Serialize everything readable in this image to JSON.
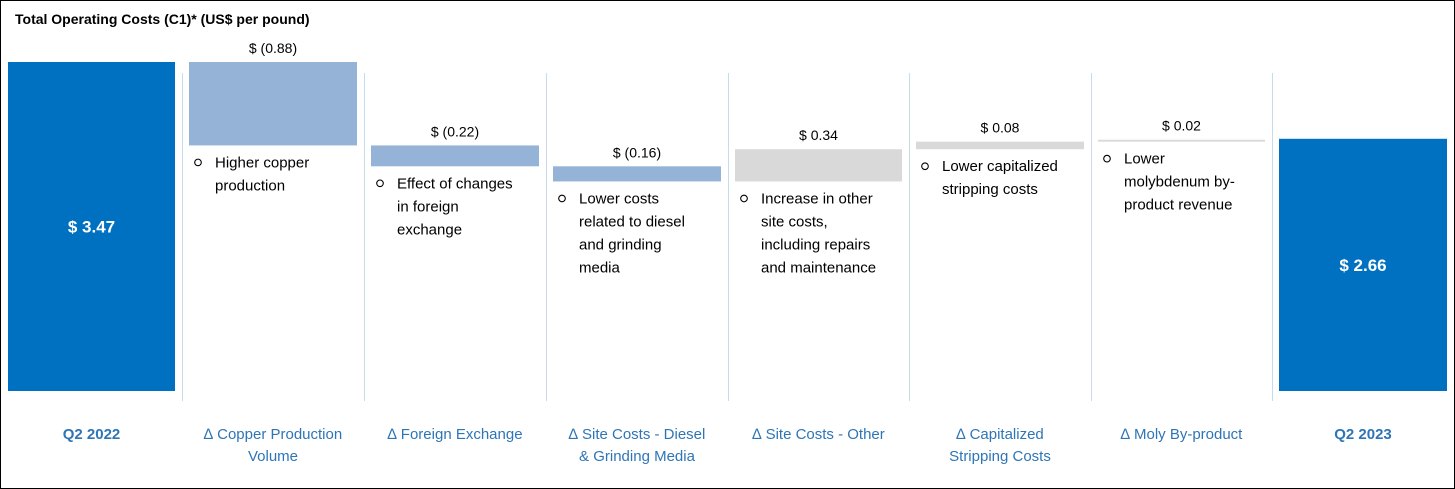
{
  "chart_data": {
    "type": "bar",
    "subtype": "waterfall",
    "title": "Total Operating Costs (C1)* (US$ per pound)",
    "categories": [
      "Q2 2022",
      "∆ Copper Production Volume",
      "∆ Foreign Exchange",
      "∆ Site Costs - Diesel & Grinding Media",
      "∆ Site Costs - Other",
      "∆ Capitalized Stripping Costs",
      "∆ Moly By-product",
      "Q2 2023"
    ],
    "category_lines": [
      [
        "Q2 2022"
      ],
      [
        "∆ Copper Production",
        "Volume"
      ],
      [
        "∆ Foreign Exchange"
      ],
      [
        "∆ Site Costs - Diesel",
        "& Grinding Media"
      ],
      [
        "∆ Site Costs - Other"
      ],
      [
        "∆ Capitalized",
        "Stripping Costs"
      ],
      [
        "∆ Moly By-product"
      ],
      [
        "Q2 2023"
      ]
    ],
    "values": [
      3.47,
      -0.88,
      -0.22,
      -0.16,
      0.34,
      0.08,
      0.02,
      2.66
    ],
    "bar_kinds": [
      "total",
      "delta",
      "delta",
      "delta",
      "delta",
      "delta",
      "delta",
      "total"
    ],
    "value_labels": [
      "$ 3.47",
      "$ (0.88)",
      "$ (0.22)",
      "$ (0.16)",
      "$ 0.34",
      "$ 0.08",
      "$ 0.02",
      "$ 2.66"
    ],
    "notes": [
      [],
      [
        "Higher copper",
        "production"
      ],
      [
        "Effect of changes",
        "in foreign",
        "exchange"
      ],
      [
        "Lower costs",
        "related to diesel",
        "and grinding",
        "media"
      ],
      [
        "Increase in other",
        "site costs,",
        "including repairs",
        "and maintenance"
      ],
      [
        "Lower capitalized",
        "stripping costs"
      ],
      [
        "Lower",
        "molybdenum by-",
        "product revenue"
      ],
      []
    ],
    "colors": {
      "total": "#0070c0",
      "decrease": "#95b3d7",
      "increase": "#d9d9d9",
      "category_text": "#2e75b6",
      "separator": "#c5dbee"
    },
    "ylim": [
      0,
      3.47
    ],
    "grid": false,
    "legend": "none"
  }
}
